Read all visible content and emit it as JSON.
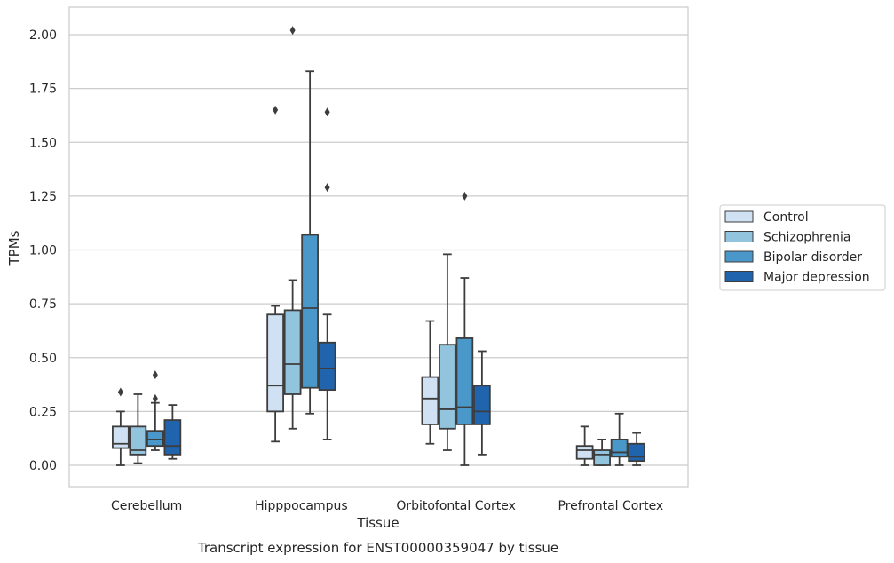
{
  "caption": "Transcript expression for ENST00000359047 by tissue",
  "chart_data": {
    "type": "box",
    "xlabel": "Tissue",
    "ylabel": "TPMs",
    "ylim": [
      -0.1,
      2.12
    ],
    "yticks": [
      0.0,
      0.25,
      0.5,
      0.75,
      1.0,
      1.25,
      1.5,
      1.75,
      2.0
    ],
    "ytick_labels": [
      "0.00",
      "0.25",
      "0.50",
      "0.75",
      "1.00",
      "1.25",
      "1.50",
      "1.75",
      "2.00"
    ],
    "grid": "horizontal",
    "legend_position": "right",
    "categories": [
      "Cerebellum",
      "Hipppocampus",
      "Orbitofontal Cortex",
      "Prefrontal Cortex"
    ],
    "series": [
      {
        "name": "Control",
        "color": "#cfe1f2",
        "boxes": [
          {
            "whislo": 0.0,
            "q1": 0.08,
            "med": 0.1,
            "q3": 0.18,
            "whishi": 0.25,
            "fliers": [
              0.34
            ]
          },
          {
            "whislo": 0.11,
            "q1": 0.25,
            "med": 0.37,
            "q3": 0.7,
            "whishi": 0.74,
            "fliers": [
              1.65
            ]
          },
          {
            "whislo": 0.1,
            "q1": 0.19,
            "med": 0.31,
            "q3": 0.41,
            "whishi": 0.67,
            "fliers": []
          },
          {
            "whislo": 0.0,
            "q1": 0.03,
            "med": 0.07,
            "q3": 0.09,
            "whishi": 0.18,
            "fliers": []
          }
        ]
      },
      {
        "name": "Schizophrenia",
        "color": "#93c4de",
        "boxes": [
          {
            "whislo": 0.01,
            "q1": 0.05,
            "med": 0.07,
            "q3": 0.18,
            "whishi": 0.33,
            "fliers": []
          },
          {
            "whislo": 0.17,
            "q1": 0.33,
            "med": 0.47,
            "q3": 0.72,
            "whishi": 0.86,
            "fliers": [
              2.02
            ]
          },
          {
            "whislo": 0.07,
            "q1": 0.17,
            "med": 0.26,
            "q3": 0.56,
            "whishi": 0.98,
            "fliers": []
          },
          {
            "whislo": 0.0,
            "q1": 0.0,
            "med": 0.05,
            "q3": 0.07,
            "whishi": 0.12,
            "fliers": []
          }
        ]
      },
      {
        "name": "Bipolar disorder",
        "color": "#4a98c9",
        "boxes": [
          {
            "whislo": 0.07,
            "q1": 0.09,
            "med": 0.12,
            "q3": 0.16,
            "whishi": 0.29,
            "fliers": [
              0.31,
              0.42
            ]
          },
          {
            "whislo": 0.24,
            "q1": 0.36,
            "med": 0.73,
            "q3": 1.07,
            "whishi": 1.83,
            "fliers": []
          },
          {
            "whislo": 0.0,
            "q1": 0.19,
            "med": 0.27,
            "q3": 0.59,
            "whishi": 0.87,
            "fliers": [
              1.25
            ]
          },
          {
            "whislo": 0.0,
            "q1": 0.04,
            "med": 0.06,
            "q3": 0.12,
            "whishi": 0.24,
            "fliers": []
          }
        ]
      },
      {
        "name": "Major depression",
        "color": "#1f64ad",
        "boxes": [
          {
            "whislo": 0.03,
            "q1": 0.05,
            "med": 0.09,
            "q3": 0.21,
            "whishi": 0.28,
            "fliers": []
          },
          {
            "whislo": 0.12,
            "q1": 0.35,
            "med": 0.45,
            "q3": 0.57,
            "whishi": 0.7,
            "fliers": [
              1.29,
              1.64
            ]
          },
          {
            "whislo": 0.05,
            "q1": 0.19,
            "med": 0.25,
            "q3": 0.37,
            "whishi": 0.53,
            "fliers": []
          },
          {
            "whislo": 0.0,
            "q1": 0.02,
            "med": 0.04,
            "q3": 0.1,
            "whishi": 0.15,
            "fliers": []
          }
        ]
      }
    ]
  }
}
